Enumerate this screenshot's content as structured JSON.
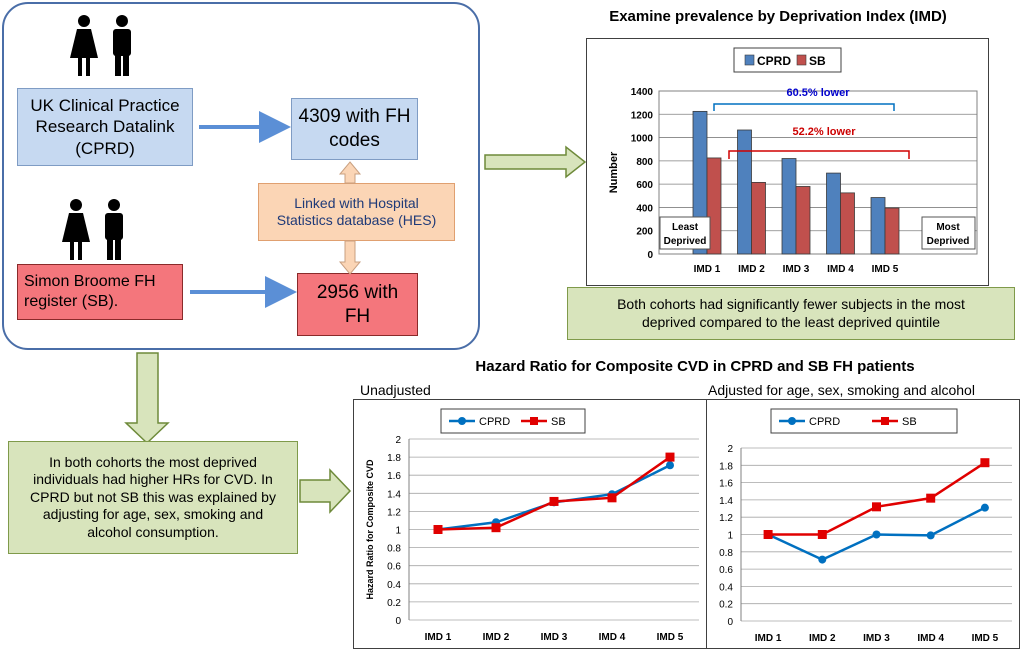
{
  "flow": {
    "cprd_box": "UK Clinical Practice Research Datalink (CPRD)",
    "sb_box": "Simon Broome FH register (SB).",
    "fh_codes_box": "4309 with FH codes",
    "fh_box": "2956 with FH",
    "hes_box": "Linked with Hospital Statistics database (HES)",
    "summary_box": "In both cohorts  the most deprived individuals had higher HRs for CVD. In CPRD but not SB this was explained by adjusting for age, sex, smoking and alcohol consumption.",
    "prevalence_box": "Both cohorts had significantly  fewer subjects in the most deprived compared to the least deprived quintile",
    "colors": {
      "cprd": "#4f81bd",
      "sb": "#c0504d",
      "arrow": "#5b8fd6",
      "green": "#d8e4bc"
    }
  },
  "prevalence_title": "Examine prevalence by Deprivation Index (IMD)",
  "hr_title": "Hazard Ratio for Composite CVD in CPRD and SB FH patients",
  "unadjusted_label": "Unadjusted",
  "adjusted_label": "Adjusted for age, sex, smoking and alcohol",
  "chart_data": [
    {
      "type": "bar",
      "categories": [
        "IMD 1",
        "IMD 2",
        "IMD 3",
        "IMD 4",
        "IMD 5"
      ],
      "series": [
        {
          "name": "CPRD",
          "values": [
            1225,
            1065,
            820,
            695,
            485
          ],
          "color": "#4f81bd"
        },
        {
          "name": "SB",
          "values": [
            825,
            615,
            580,
            525,
            395
          ],
          "color": "#c0504d"
        }
      ],
      "ylabel": "Number",
      "ylim": [
        0,
        1400
      ],
      "yticks": [
        0,
        200,
        400,
        600,
        800,
        1000,
        1200,
        1400
      ],
      "legend": "top",
      "annotations": [
        {
          "text": "60.5% lower",
          "color": "#0000cc"
        },
        {
          "text": "52.2% lower",
          "color": "#cc0000"
        },
        {
          "text": "Least Deprived"
        },
        {
          "text": "Most Deprived"
        }
      ]
    },
    {
      "type": "line",
      "categories": [
        "IMD 1",
        "IMD 2",
        "IMD 3",
        "IMD 4",
        "IMD 5"
      ],
      "series": [
        {
          "name": "CPRD",
          "values": [
            1.0,
            1.08,
            1.3,
            1.39,
            1.71
          ],
          "color": "#0070c0"
        },
        {
          "name": "SB",
          "values": [
            1.0,
            1.02,
            1.31,
            1.35,
            1.8
          ],
          "color": "#e00000"
        }
      ],
      "ylabel": "Hazard Ratio for Composite CVD",
      "ylim": [
        0,
        2
      ],
      "yticks": [
        "0",
        "0.2",
        "0.4",
        "0.6",
        "0.8",
        "1",
        "1.2",
        "1.4",
        "1.6",
        "1.8",
        "2"
      ],
      "legend": "top"
    },
    {
      "type": "line",
      "categories": [
        "IMD 1",
        "IMD 2",
        "IMD 3",
        "IMD 4",
        "IMD 5"
      ],
      "series": [
        {
          "name": "CPRD",
          "values": [
            1.0,
            0.71,
            1.0,
            0.99,
            1.31
          ],
          "color": "#0070c0"
        },
        {
          "name": "SB",
          "values": [
            1.0,
            1.0,
            1.32,
            1.42,
            1.83
          ],
          "color": "#e00000"
        }
      ],
      "ylabel": "",
      "ylim": [
        0,
        2
      ],
      "yticks": [
        "0",
        "0.2",
        "0.4",
        "0.6",
        "0.8",
        "1",
        "1.2",
        "1.4",
        "1.6",
        "1.8",
        "2"
      ],
      "legend": "top"
    }
  ]
}
